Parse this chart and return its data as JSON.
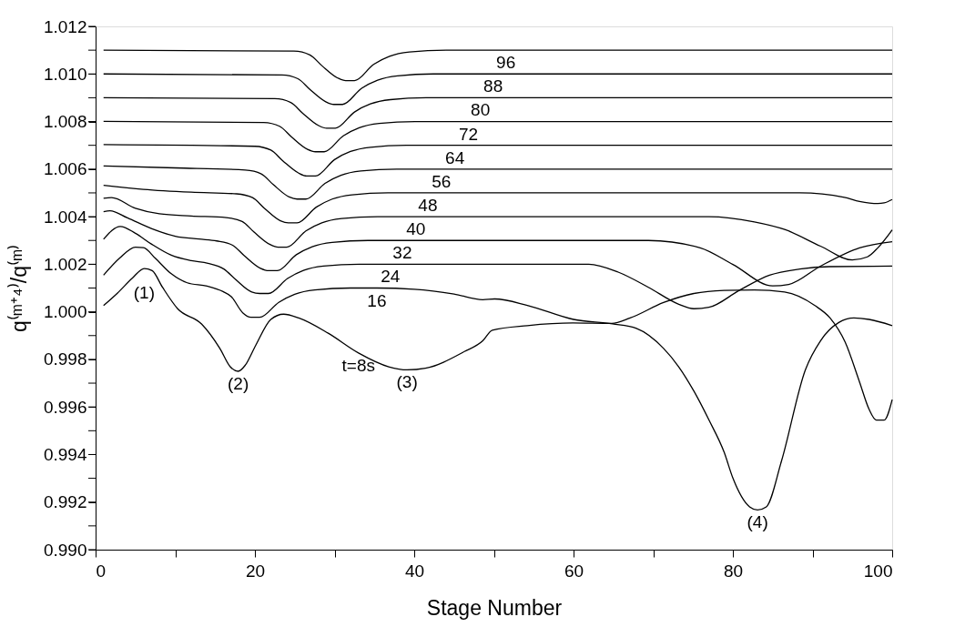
{
  "chart_data": {
    "type": "line",
    "xlabel": "Stage Number",
    "ylabel": "q⁽ᵐ⁺⁴⁾/q⁽ᵐ⁾",
    "xlim": [
      0,
      100
    ],
    "ylim": [
      0.99,
      1.012
    ],
    "xticks": [
      0,
      {
        "value": 10,
        "label": null
      },
      20,
      {
        "value": 30,
        "label": null
      },
      40,
      {
        "value": 50,
        "label": null
      },
      60,
      {
        "value": 70,
        "label": null
      },
      80,
      {
        "value": 90,
        "label": null
      },
      100
    ],
    "yticks": [
      {
        "value": 0.99,
        "label": "0.990"
      },
      {
        "value": 0.991,
        "label": null
      },
      {
        "value": 0.992,
        "label": "0.992"
      },
      {
        "value": 0.993,
        "label": null
      },
      {
        "value": 0.994,
        "label": "0.994"
      },
      {
        "value": 0.995,
        "label": null
      },
      {
        "value": 0.996,
        "label": "0.996"
      },
      {
        "value": 0.997,
        "label": null
      },
      {
        "value": 0.998,
        "label": "0.998"
      },
      {
        "value": 0.999,
        "label": null
      },
      {
        "value": 1.0,
        "label": "1.000"
      },
      {
        "value": 1.001,
        "label": null
      },
      {
        "value": 1.002,
        "label": "1.002"
      },
      {
        "value": 1.003,
        "label": null
      },
      {
        "value": 1.004,
        "label": "1.004"
      },
      {
        "value": 1.005,
        "label": null
      },
      {
        "value": 1.006,
        "label": "1.006"
      },
      {
        "value": 1.007,
        "label": null
      },
      {
        "value": 1.008,
        "label": "1.008"
      },
      {
        "value": 1.009,
        "label": null
      },
      {
        "value": 1.01,
        "label": "1.010"
      },
      {
        "value": 1.011,
        "label": null
      },
      {
        "value": 1.012,
        "label": "1.012"
      }
    ],
    "series": [
      {
        "color": "#000000",
        "x": [
          1,
          24.9,
          26.9,
          28.4,
          30.4,
          31.4,
          32.5,
          34.9,
          36.9,
          39.4,
          44,
          51.5,
          100
        ],
        "values": [
          1.011,
          1.01096,
          1.0108,
          1.01035,
          1.00983,
          1.00972,
          1.00972,
          1.0104,
          1.01074,
          1.01092,
          1.011,
          1.011,
          1.011
        ]
      },
      {
        "color": "#000000",
        "x": [
          1,
          23.4,
          25.4,
          26.9,
          28.9,
          29.9,
          31.0,
          33.4,
          35.4,
          37.9,
          42.4,
          49.9,
          100
        ],
        "values": [
          1.01,
          1.00996,
          1.0098,
          1.00935,
          1.00883,
          1.00872,
          1.00872,
          1.0094,
          1.00974,
          1.00992,
          1.01,
          1.01,
          1.01
        ]
      },
      {
        "color": "#000000",
        "x": [
          1,
          22.5,
          24.5,
          26,
          28,
          29,
          30.1,
          32.5,
          34.5,
          37,
          41.5,
          48.3,
          100
        ],
        "values": [
          1.009,
          1.00896,
          1.0088,
          1.00835,
          1.00783,
          1.00772,
          1.00772,
          1.0084,
          1.00874,
          1.00892,
          1.009,
          1.009,
          1.009
        ]
      },
      {
        "color": "#000000",
        "x": [
          1,
          21.1,
          23.1,
          24.6,
          26.6,
          27.6,
          28.7,
          31.1,
          33.1,
          35.6,
          40.1,
          46.8,
          100
        ],
        "values": [
          1.00801,
          1.00796,
          1.0078,
          1.00735,
          1.00683,
          1.00673,
          1.00673,
          1.0074,
          1.00774,
          1.00792,
          1.008,
          1.008,
          1.008
        ]
      },
      {
        "color": "#000000",
        "x": [
          1,
          20,
          22,
          23.5,
          25.5,
          26.5,
          27.6,
          30,
          32,
          34.5,
          39,
          45.1,
          100
        ],
        "values": [
          1.00703,
          1.00696,
          1.0068,
          1.00635,
          1.00583,
          1.00571,
          1.00571,
          1.0064,
          1.00674,
          1.00692,
          1.007,
          1.007,
          1.007
        ]
      },
      {
        "color": "#000000",
        "x": [
          1,
          10,
          18.8,
          20.8,
          22.3,
          24.3,
          25.3,
          26.4,
          28.8,
          30.8,
          33.3,
          37.8,
          43.4,
          100
        ],
        "values": [
          1.00613,
          1.00605,
          1.00596,
          1.0058,
          1.00535,
          1.00483,
          1.00474,
          1.00474,
          1.0054,
          1.00574,
          1.00592,
          1.006,
          1.006,
          1.006
        ]
      },
      {
        "color": "#000000",
        "x": [
          1,
          6,
          12,
          17.7,
          19.7,
          21.2,
          23.2,
          24.2,
          25.3,
          27.7,
          29.7,
          32.2,
          36.7,
          41.7,
          88.4,
          94.0,
          95.9,
          98.2,
          99.0,
          100
        ],
        "values": [
          1.00532,
          1.00515,
          1.00503,
          1.00496,
          1.0048,
          1.00435,
          1.00383,
          1.00374,
          1.00374,
          1.0044,
          1.00474,
          1.00492,
          1.005,
          1.005,
          1.005,
          1.00481,
          1.00464,
          1.00455,
          1.00458,
          1.00472
        ]
      },
      {
        "color": "#000000",
        "x": [
          1,
          2,
          5,
          8,
          12,
          16.4,
          18.4,
          19.9,
          21.9,
          22.9,
          24.0,
          26.4,
          28.4,
          30.9,
          35.4,
          40.2,
          77.0,
          82.7,
          86.5,
          91.0,
          95.0,
          96.9,
          98.2,
          100
        ],
        "values": [
          1.00477,
          1.0048,
          1.00435,
          1.00412,
          1.00403,
          1.00396,
          1.0038,
          1.00335,
          1.00283,
          1.00272,
          1.00272,
          1.0034,
          1.00374,
          1.00392,
          1.004,
          1.004,
          1.004,
          1.00378,
          1.00346,
          1.00276,
          1.00218,
          1.00231,
          1.00269,
          1.00344
        ]
      },
      {
        "color": "#000000",
        "x": [
          1,
          1.8,
          4,
          7,
          10,
          13,
          15.2,
          17.2,
          18.7,
          20.7,
          21.7,
          22.8,
          25.2,
          27.2,
          29.7,
          34.2,
          38.5,
          69.4,
          75.9,
          80.0,
          85.0,
          87.0,
          91.0,
          95.9,
          100
        ],
        "values": [
          1.00421,
          1.00425,
          1.00395,
          1.0035,
          1.00318,
          1.00306,
          1.00298,
          1.0028,
          1.00235,
          1.00183,
          1.00173,
          1.00173,
          1.0024,
          1.00274,
          1.00292,
          1.003,
          1.003,
          1.003,
          1.00269,
          1.00199,
          1.00109,
          1.00115,
          1.00192,
          1.00269,
          1.00295
        ]
      },
      {
        "color": "#000000",
        "x": [
          1,
          3.1,
          5,
          7,
          9.5,
          12,
          14.1,
          16.1,
          17.6,
          19.6,
          20.6,
          21.7,
          24.1,
          26.1,
          28.6,
          33.1,
          37.0,
          61.9,
          65.6,
          69.4,
          73.2,
          75.1,
          77.0,
          80.8,
          84.6,
          88.4,
          92.1,
          100
        ],
        "values": [
          1.00305,
          1.00359,
          1.0033,
          1.00285,
          1.00238,
          1.00215,
          1.00204,
          1.0018,
          1.00135,
          1.00083,
          1.00077,
          1.00077,
          1.0014,
          1.00174,
          1.00192,
          1.002,
          1.002,
          1.002,
          1.00167,
          1.00103,
          1.00032,
          1.00013,
          1.00019,
          1.0009,
          1.00154,
          1.0018,
          1.0019,
          1.00192
        ]
      },
      {
        "color": "#000000",
        "x": [
          1,
          3,
          5,
          6,
          7.5,
          9.5,
          11.5,
          14,
          16,
          17,
          18.5,
          19.5,
          20.6,
          23,
          25,
          27.5,
          32,
          35.3,
          40,
          45,
          48.6,
          50.1,
          54.3,
          60.0,
          64.9,
          67.9,
          71.3,
          73.2,
          75.1,
          77.0,
          78.9,
          80.0,
          82.1,
          83.1,
          84.2,
          86.1,
          89.1,
          91.0,
          93.3,
          95.2,
          97.1,
          100
        ],
        "values": [
          1.00154,
          1.00225,
          1.00272,
          1.0027,
          1.00225,
          1.0016,
          1.00122,
          1.00108,
          1.00085,
          1.00065,
          0.99995,
          0.99977,
          0.99977,
          1.0004,
          1.00074,
          1.00092,
          1.001,
          1.001,
          1.00095,
          1.00075,
          1.00051,
          1.00054,
          1.00026,
          0.99968,
          0.99949,
          0.9993,
          0.99846,
          0.99769,
          0.99667,
          0.99545,
          0.9941,
          0.99301,
          0.9918,
          0.99167,
          0.9918,
          0.99372,
          0.99756,
          0.99878,
          0.99955,
          0.99974,
          0.99968,
          0.99942
        ]
      },
      {
        "color": "#000000",
        "x": [
          1,
          2.7,
          4.6,
          6.1,
          7.1,
          8.4,
          10.3,
          13.3,
          15.6,
          16.9,
          17.9,
          18.8,
          20.1,
          22.0,
          23.6,
          25.5,
          29.2,
          33.0,
          36.8,
          39.1,
          41.4,
          46.3,
          48.6,
          49.8,
          54.2,
          59.9,
          64.8,
          67.1,
          71.3,
          75.1,
          78.9,
          82.7,
          86.5,
          90.3,
          92.2,
          94.1,
          95.9,
          97.1,
          98.0,
          99.0,
          100
        ],
        "values": [
          1.00026,
          1.00077,
          1.00141,
          1.00182,
          1.00173,
          1.00103,
          1.00013,
          0.99949,
          0.99846,
          0.99769,
          0.9975,
          0.99776,
          0.99859,
          0.99968,
          0.9999,
          0.99974,
          0.9991,
          0.99827,
          0.99769,
          0.99756,
          0.99763,
          0.99833,
          0.99878,
          0.99923,
          0.99942,
          0.99953,
          0.99951,
          0.99974,
          1.00039,
          1.00077,
          1.0009,
          1.00092,
          1.00083,
          1.00026,
          0.99974,
          0.99872,
          0.99705,
          0.9959,
          0.99545,
          0.99545,
          0.99631
        ]
      }
    ],
    "annotations": [
      {
        "text": "96",
        "x": 51.5,
        "y": 1.011
      },
      {
        "text": "88",
        "x": 49.9,
        "y": 1.01
      },
      {
        "text": "80",
        "x": 48.3,
        "y": 1.009
      },
      {
        "text": "72",
        "x": 46.8,
        "y": 1.008
      },
      {
        "text": "64",
        "x": 45.1,
        "y": 1.007
      },
      {
        "text": "56",
        "x": 43.4,
        "y": 1.006
      },
      {
        "text": "48",
        "x": 41.7,
        "y": 1.005
      },
      {
        "text": "40",
        "x": 40.2,
        "y": 1.004
      },
      {
        "text": "32",
        "x": 38.5,
        "y": 1.003
      },
      {
        "text": "24",
        "x": 37.0,
        "y": 1.002
      },
      {
        "text": "16",
        "x": 35.3,
        "y": 1.001
      },
      {
        "text": "t=8s",
        "x": 33.0,
        "y": 0.99827
      },
      {
        "text": "(1)",
        "x": 6.1,
        "y": 1.00182
      },
      {
        "text": "(2)",
        "x": 17.9,
        "y": 0.9975
      },
      {
        "text": "(3)",
        "x": 39.1,
        "y": 0.99756
      },
      {
        "text": "(4)",
        "x": 83.1,
        "y": 0.99167
      }
    ]
  }
}
